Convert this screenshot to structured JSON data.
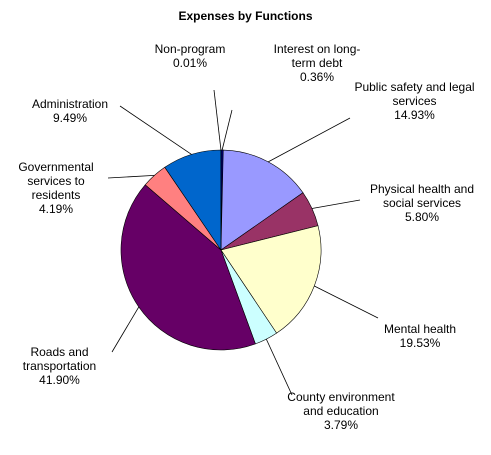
{
  "chart_data": {
    "type": "pie",
    "title": "Expenses by Functions",
    "categories": [
      "Interest on long-term debt",
      "Public safety and legal services",
      "Physical health and social services",
      "Mental health",
      "County environment and education",
      "Roads and transportation",
      "Governmental services to residents",
      "Administration",
      "Non-program"
    ],
    "values": [
      0.36,
      14.93,
      5.8,
      19.53,
      3.79,
      41.9,
      4.19,
      9.49,
      0.01
    ],
    "value_labels": [
      "0.36%",
      "14.93%",
      "5.80%",
      "19.53%",
      "3.79%",
      "41.90%",
      "4.19%",
      "9.49%",
      "0.01%"
    ],
    "colors": [
      "#000080",
      "#9999ff",
      "#993366",
      "#ffffcc",
      "#ccffff",
      "#660066",
      "#ff8080",
      "#0066cc",
      "#000000"
    ]
  }
}
